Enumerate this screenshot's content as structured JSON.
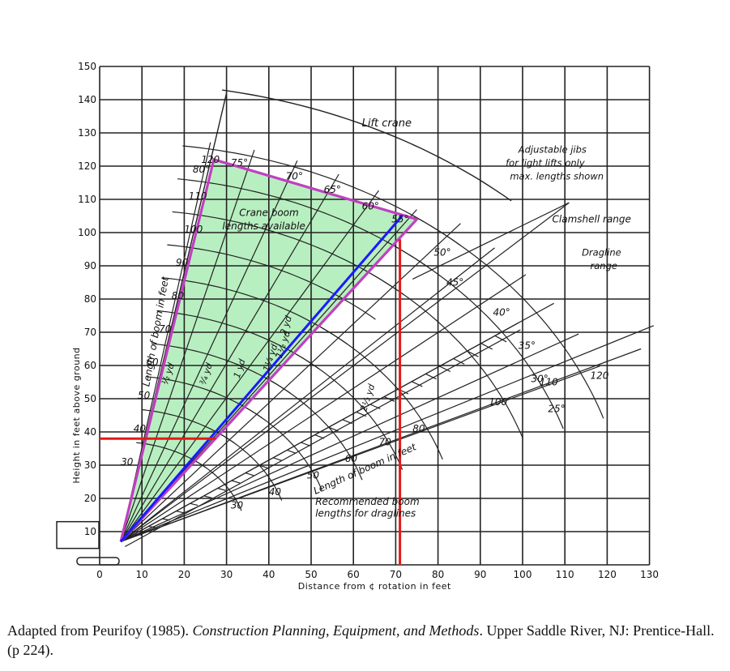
{
  "chart_data": {
    "type": "line",
    "xlabel": "Distance from ¢ rotation in feet",
    "ylabel": "Height in feet above ground",
    "xlim": [
      0,
      130
    ],
    "ylim": [
      0,
      150
    ],
    "x_ticks": [
      0,
      10,
      20,
      30,
      40,
      50,
      60,
      70,
      80,
      90,
      100,
      110,
      120,
      130
    ],
    "x_tick_labels": [
      "0",
      "10",
      "20",
      "30",
      "40",
      "50",
      "60",
      "70",
      "80",
      "90",
      "100",
      "110",
      "120",
      "130"
    ],
    "y_ticks": [
      10,
      20,
      30,
      40,
      50,
      60,
      70,
      80,
      90,
      100,
      110,
      120,
      130,
      140,
      150
    ],
    "y_tick_labels": [
      "10",
      "20",
      "30",
      "40",
      "50",
      "60",
      "70",
      "80",
      "90",
      "100",
      "110",
      "120",
      "130",
      "140",
      "150"
    ],
    "grid": true,
    "boom_pivot": [
      5,
      7
    ],
    "annotations": {
      "lift_crane": "Lift crane",
      "jibs": [
        "Adjustable jibs",
        "for light lifts only",
        "max. lengths shown"
      ],
      "clamshell": "Clamshell range",
      "dragline": [
        "Dragline",
        "range"
      ],
      "crane_boom": [
        "Crane boom",
        "lengths available"
      ],
      "length_of_boom": "Length of boom in feet",
      "length_of_boom_2": "Length of boom in feet",
      "recommended": [
        "Recommended boom",
        "lengths for draglines"
      ]
    },
    "crane_boom_lengths": [
      "30",
      "40",
      "50",
      "60",
      "70",
      "80",
      "90",
      "100",
      "110",
      "120"
    ],
    "crane_angles": [
      "80°",
      "75°",
      "70°",
      "65°",
      "60°",
      "55°"
    ],
    "dragline_angles": [
      "50°",
      "45°",
      "40°",
      "35°",
      "30°",
      "25°"
    ],
    "dragline_boom_lengths": [
      "30",
      "40",
      "50",
      "60",
      "70",
      "80",
      "100",
      "110",
      "120"
    ],
    "bucket_sizes": [
      "½ yd",
      "¾ yd",
      "1 yd",
      "1¼ yd",
      "1½ yd",
      "2 yd",
      "2½ yd"
    ],
    "series": [
      {
        "name": "Crane boom range",
        "color": "#c040c0",
        "fill": "#b8efc0",
        "points": [
          [
            5,
            7
          ],
          [
            27,
            122
          ],
          [
            75,
            104
          ],
          [
            5,
            7
          ]
        ]
      },
      {
        "color": "#1a1aff",
        "points": [
          [
            5,
            7
          ],
          [
            71.5,
            105
          ]
        ]
      },
      {
        "color": "#e31a1a",
        "points": [
          [
            0,
            38
          ],
          [
            27.5,
            38
          ]
        ]
      },
      {
        "color": "#e31a1a",
        "points": [
          [
            71,
            0
          ],
          [
            71,
            98
          ]
        ]
      }
    ]
  },
  "caption": {
    "prefix": "Adapted from Peurifoy (1985). ",
    "title": "Construction Planning, Equipment, and Methods",
    "suffix": ". Upper Saddle River, NJ: Prentice-Hall. (p 224)."
  }
}
